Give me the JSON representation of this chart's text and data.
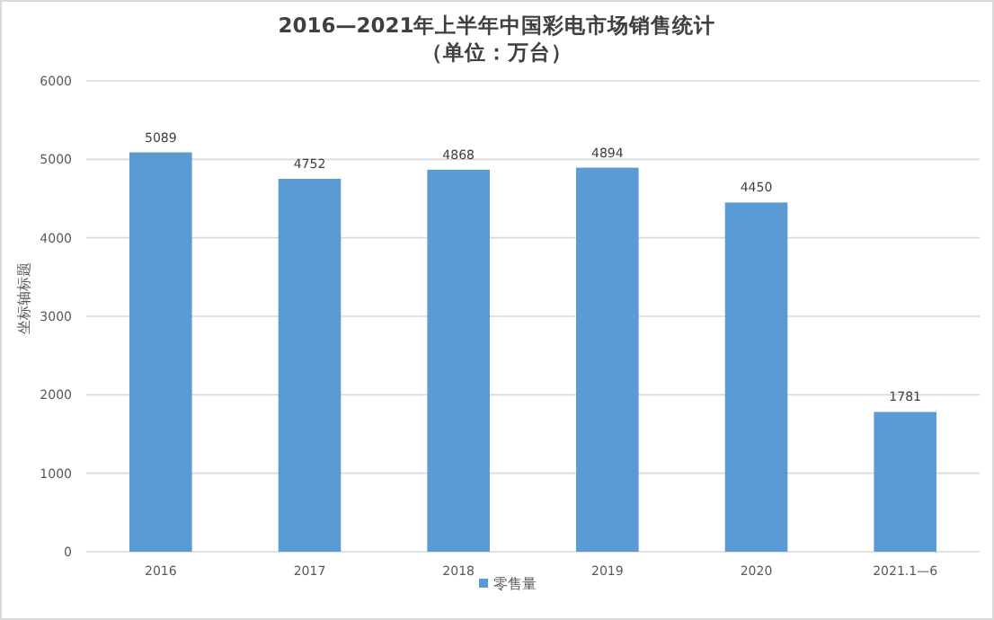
{
  "chart_data": {
    "type": "bar",
    "title": "2016—2021年上半年中国彩电市场销售统计",
    "subtitle": "（单位：万台）",
    "ylabel": "坐标轴标题",
    "categories": [
      "2016",
      "2017",
      "2018",
      "2019",
      "2020",
      "2021.1—6"
    ],
    "series": [
      {
        "name": "零售量",
        "color": "#5b9bd5",
        "values": [
          5089,
          4752,
          4868,
          4894,
          4450,
          1781
        ]
      }
    ],
    "ylim": [
      0,
      6000
    ],
    "yticks": [
      0,
      1000,
      2000,
      3000,
      4000,
      5000,
      6000
    ],
    "grid": "y",
    "data_labels": true,
    "legend": "bottom"
  }
}
